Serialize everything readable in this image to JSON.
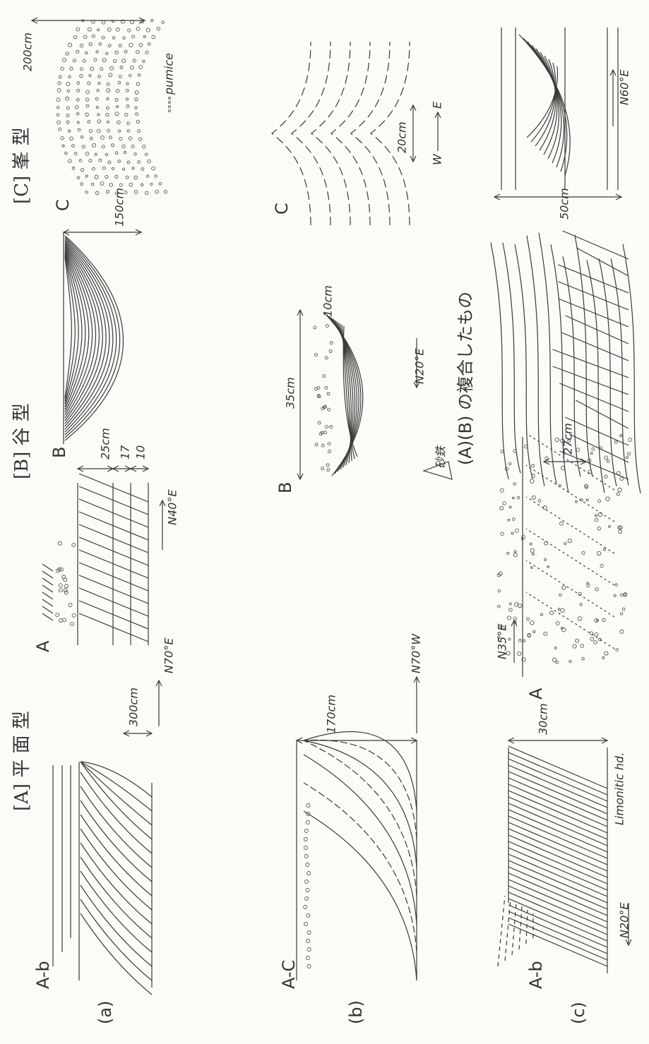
{
  "headings": {
    "a": "[A] 平 面 型",
    "b": "[B] 谷 型",
    "c": "[C] 峯 型"
  },
  "row_labels": [
    "(a)",
    "(b)",
    "(c)"
  ],
  "sketches": [
    {
      "label": "A-b",
      "notes": [
        "300cm",
        "N70°E"
      ]
    },
    {
      "label": "A",
      "notes": [
        "25cm",
        "17",
        "10",
        "N40°E"
      ]
    },
    {
      "label": "B",
      "notes": [
        "150cm"
      ]
    },
    {
      "label": "C",
      "notes": [
        "200cm",
        "pumice"
      ]
    },
    {
      "label": "A-C",
      "notes": [
        "170cm",
        "N70°W"
      ]
    },
    {
      "label": "B",
      "notes": [
        "35cm",
        "10cm",
        "N20°E",
        "砂鉄"
      ]
    },
    {
      "label": "C",
      "notes": [
        "20cm",
        "W",
        "E"
      ]
    },
    {
      "label": "A-b",
      "notes": [
        "30cm",
        "Limonitic hd.",
        "N20°E"
      ]
    },
    {
      "label": "A",
      "notes": [
        "N35°E",
        "27cm"
      ]
    },
    {
      "label": "(A)(B) の複合したもの",
      "notes": []
    },
    {
      "notes": [
        "50cm",
        "N60°E"
      ]
    }
  ]
}
